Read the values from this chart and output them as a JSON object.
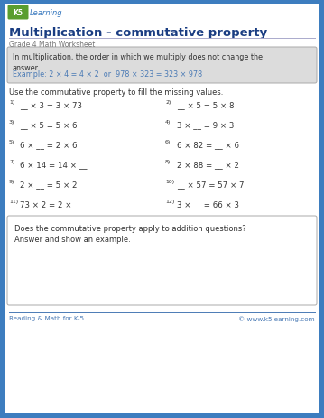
{
  "title": "Multiplication - commutative property",
  "subtitle": "Grade 4 Math Worksheet",
  "bg_color": "#3d7dbf",
  "page_bg": "#ffffff",
  "info_box_bg": "#dcdcdc",
  "info_box_text1": "In multiplication, the order in which we multiply does not change the\nanswer.",
  "info_box_text2": "Example: 2 × 4 = 4 × 2  or  978 × 323 = 323 × 978",
  "instruction": "Use the commutative property to fill the missing values.",
  "problems_left": [
    {
      "num": "1)",
      "text": "__ × 3 = 3 × 73"
    },
    {
      "num": "3)",
      "text": "__ × 5 = 5 × 6"
    },
    {
      "num": "5)",
      "text": "6 × __ = 2 × 6"
    },
    {
      "num": "7)",
      "text": "6 × 14 = 14 × __"
    },
    {
      "num": "9)",
      "text": "2 × __ = 5 × 2"
    },
    {
      "num": "11)",
      "text": "73 × 2 = 2 × __"
    }
  ],
  "problems_right": [
    {
      "num": "2)",
      "text": "__ × 5 = 5 × 8"
    },
    {
      "num": "4)",
      "text": "3 × __ = 9 × 3"
    },
    {
      "num": "6)",
      "text": "6 × 82 = __ × 6"
    },
    {
      "num": "8)",
      "text": "2 × 88 = __ × 2"
    },
    {
      "num": "10)",
      "text": "__ × 57 = 57 × 7"
    },
    {
      "num": "12)",
      "text": "3 × __ = 66 × 3"
    }
  ],
  "bottom_box_text": "Does the commutative property apply to addition questions?\nAnswer and show an example.",
  "footer_left": "Reading & Math for K-5",
  "footer_right": "© www.k5learning.com",
  "title_color": "#1a3d82",
  "text_color": "#333333",
  "subtitle_color": "#777777",
  "example_color": "#4a7ab5",
  "footer_color": "#4a7ab5",
  "logo_green": "#5a9e2f",
  "logo_blue": "#3a7abf"
}
